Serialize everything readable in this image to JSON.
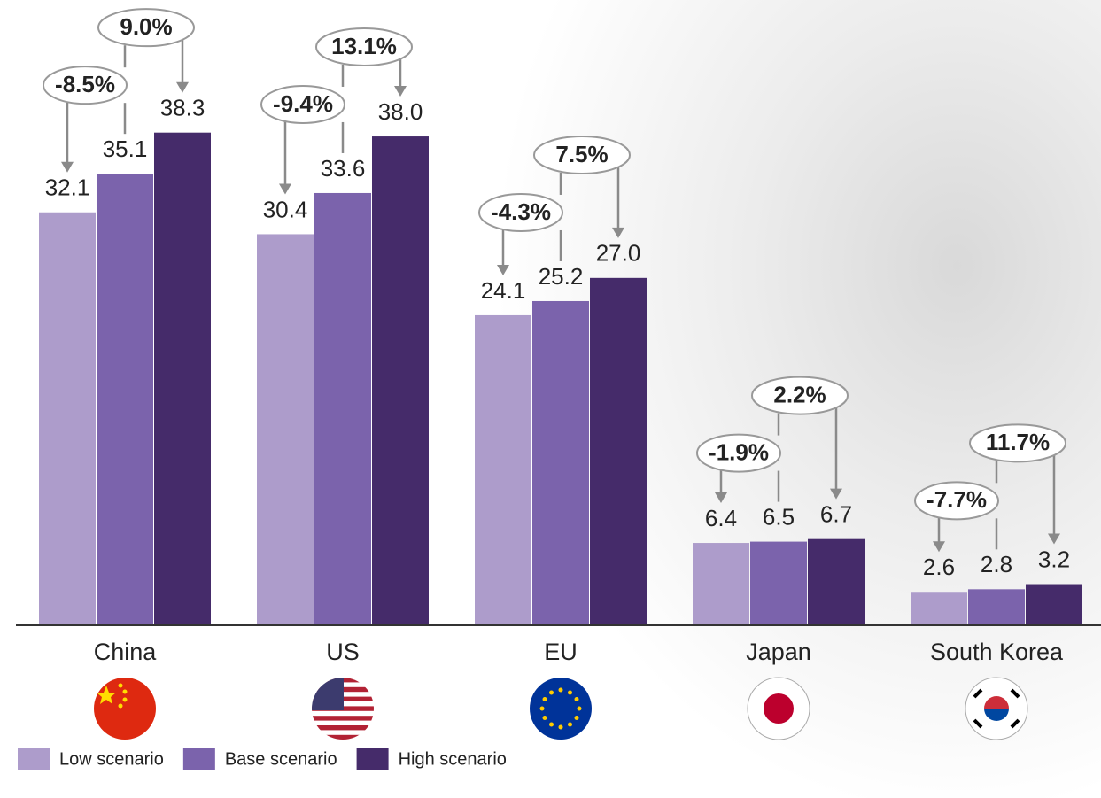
{
  "chart_data": {
    "type": "bar",
    "categories": [
      "China",
      "US",
      "EU",
      "Japan",
      "South Korea"
    ],
    "series": [
      {
        "name": "Low scenario",
        "color": "#ad9ccb",
        "values": [
          32.1,
          30.4,
          24.1,
          6.4,
          2.6
        ],
        "value_labels": [
          "32.1",
          "30.4",
          "24.1",
          "6.4",
          "2.6"
        ]
      },
      {
        "name": "Base scenario",
        "color": "#7b63ac",
        "values": [
          35.1,
          33.6,
          25.2,
          6.5,
          2.8
        ],
        "value_labels": [
          "35.1",
          "33.6",
          "25.2",
          "6.5",
          "2.8"
        ]
      },
      {
        "name": "High scenario",
        "color": "#452b6a",
        "values": [
          38.3,
          38.0,
          27.0,
          6.7,
          3.2
        ],
        "value_labels": [
          "38.3",
          "38.0",
          "27.0",
          "6.7",
          "3.2"
        ]
      }
    ],
    "annotations": {
      "low_change": [
        "-8.5%",
        "-9.4%",
        "-4.3%",
        "-1.9%",
        "-7.7%"
      ],
      "high_change": [
        "9.0%",
        "13.1%",
        "7.5%",
        "2.2%",
        "11.7%"
      ]
    },
    "ylim": [
      0,
      40
    ],
    "legend": "bottom-left"
  }
}
